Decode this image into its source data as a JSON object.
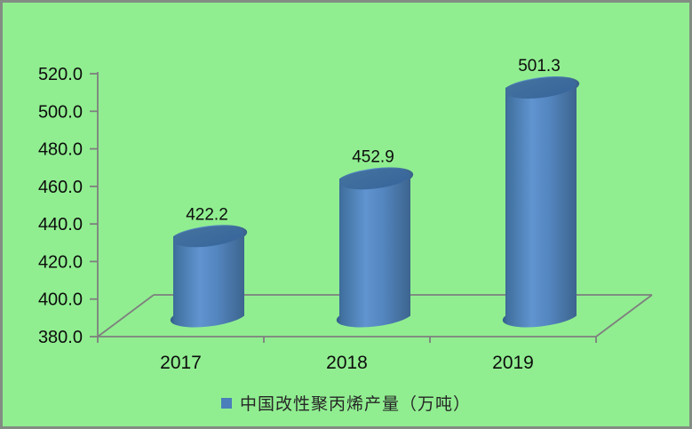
{
  "window": {
    "background_color": "#90EE90",
    "border_color": "#838c83"
  },
  "chart_data": {
    "type": "bar",
    "subtype": "3d-cylinder",
    "title": "",
    "categories": [
      "2017",
      "2018",
      "2019"
    ],
    "series": [
      {
        "name": "中国改性聚丙烯产量（万吨）",
        "values": [
          422.2,
          452.9,
          501.3
        ],
        "color": "#4A7EBB"
      }
    ],
    "data_labels": [
      "422.2",
      "452.9",
      "501.3"
    ],
    "xlabel": "",
    "ylabel": "",
    "ylim": [
      380.0,
      520.0
    ],
    "ytick_step": 20,
    "ytick_labels": [
      "380.0",
      "400.0",
      "420.0",
      "440.0",
      "460.0",
      "480.0",
      "500.0",
      "520.0"
    ],
    "grid": false,
    "legend_position": "bottom",
    "axis_color": "#7F7F7F",
    "text_color": "#0d0d0d"
  },
  "legend": {
    "label": "中国改性聚丙烯产量（万吨）"
  }
}
